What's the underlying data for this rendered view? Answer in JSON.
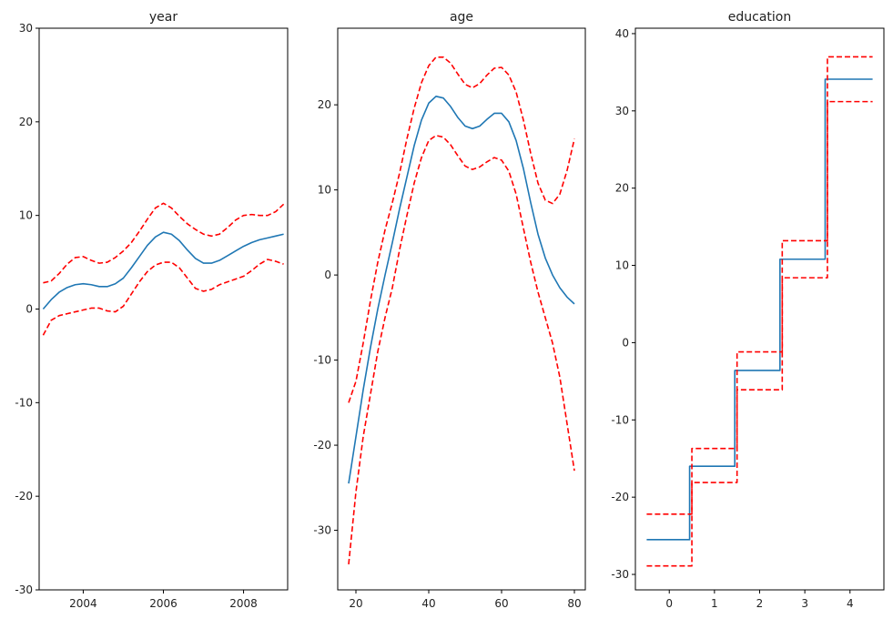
{
  "chart_data": [
    {
      "type": "line",
      "title": "year",
      "xlim": [
        2002.9,
        2009.1
      ],
      "ylim": [
        -30,
        30
      ],
      "xticks": [
        2004,
        2006,
        2008
      ],
      "yticks": [
        -30,
        -20,
        -10,
        0,
        10,
        20,
        30
      ],
      "series": [
        {
          "color": "#1f77b4",
          "style": "solid",
          "points": [
            [
              2003.0,
              0.0
            ],
            [
              2003.2,
              1.0
            ],
            [
              2003.4,
              1.8
            ],
            [
              2003.6,
              2.3
            ],
            [
              2003.8,
              2.6
            ],
            [
              2004.0,
              2.7
            ],
            [
              2004.2,
              2.6
            ],
            [
              2004.4,
              2.4
            ],
            [
              2004.6,
              2.4
            ],
            [
              2004.8,
              2.7
            ],
            [
              2005.0,
              3.3
            ],
            [
              2005.2,
              4.4
            ],
            [
              2005.4,
              5.6
            ],
            [
              2005.6,
              6.8
            ],
            [
              2005.8,
              7.7
            ],
            [
              2006.0,
              8.2
            ],
            [
              2006.2,
              8.0
            ],
            [
              2006.4,
              7.3
            ],
            [
              2006.6,
              6.3
            ],
            [
              2006.8,
              5.4
            ],
            [
              2007.0,
              4.9
            ],
            [
              2007.2,
              4.9
            ],
            [
              2007.4,
              5.2
            ],
            [
              2007.6,
              5.7
            ],
            [
              2007.8,
              6.2
            ],
            [
              2008.0,
              6.7
            ],
            [
              2008.2,
              7.1
            ],
            [
              2008.4,
              7.4
            ],
            [
              2008.6,
              7.6
            ],
            [
              2008.8,
              7.8
            ],
            [
              2009.0,
              8.0
            ]
          ]
        },
        {
          "color": "#ff0000",
          "style": "dashed",
          "points": [
            [
              2003.0,
              2.8
            ],
            [
              2003.2,
              3.0
            ],
            [
              2003.4,
              3.8
            ],
            [
              2003.6,
              4.8
            ],
            [
              2003.8,
              5.5
            ],
            [
              2004.0,
              5.6
            ],
            [
              2004.2,
              5.2
            ],
            [
              2004.4,
              4.9
            ],
            [
              2004.6,
              5.0
            ],
            [
              2004.8,
              5.5
            ],
            [
              2005.0,
              6.2
            ],
            [
              2005.2,
              7.1
            ],
            [
              2005.4,
              8.3
            ],
            [
              2005.6,
              9.6
            ],
            [
              2005.8,
              10.8
            ],
            [
              2006.0,
              11.3
            ],
            [
              2006.2,
              10.8
            ],
            [
              2006.4,
              9.9
            ],
            [
              2006.6,
              9.1
            ],
            [
              2006.8,
              8.5
            ],
            [
              2007.0,
              8.0
            ],
            [
              2007.2,
              7.8
            ],
            [
              2007.4,
              8.0
            ],
            [
              2007.6,
              8.7
            ],
            [
              2007.8,
              9.5
            ],
            [
              2008.0,
              10.0
            ],
            [
              2008.2,
              10.1
            ],
            [
              2008.4,
              10.0
            ],
            [
              2008.6,
              10.0
            ],
            [
              2008.8,
              10.4
            ],
            [
              2009.0,
              11.2
            ]
          ]
        },
        {
          "color": "#ff0000",
          "style": "dashed",
          "points": [
            [
              2003.0,
              -2.8
            ],
            [
              2003.2,
              -1.2
            ],
            [
              2003.4,
              -0.7
            ],
            [
              2003.6,
              -0.5
            ],
            [
              2003.8,
              -0.3
            ],
            [
              2004.0,
              -0.1
            ],
            [
              2004.2,
              0.1
            ],
            [
              2004.4,
              0.1
            ],
            [
              2004.6,
              -0.2
            ],
            [
              2004.8,
              -0.3
            ],
            [
              2005.0,
              0.3
            ],
            [
              2005.2,
              1.6
            ],
            [
              2005.4,
              2.9
            ],
            [
              2005.6,
              4.0
            ],
            [
              2005.8,
              4.7
            ],
            [
              2006.0,
              5.0
            ],
            [
              2006.2,
              5.0
            ],
            [
              2006.4,
              4.4
            ],
            [
              2006.6,
              3.3
            ],
            [
              2006.8,
              2.2
            ],
            [
              2007.0,
              1.9
            ],
            [
              2007.2,
              2.1
            ],
            [
              2007.4,
              2.6
            ],
            [
              2007.6,
              2.9
            ],
            [
              2007.8,
              3.2
            ],
            [
              2008.0,
              3.5
            ],
            [
              2008.2,
              4.1
            ],
            [
              2008.4,
              4.8
            ],
            [
              2008.6,
              5.3
            ],
            [
              2008.8,
              5.1
            ],
            [
              2009.0,
              4.8
            ]
          ]
        }
      ]
    },
    {
      "type": "line",
      "title": "age",
      "xlim": [
        15.0,
        83.0
      ],
      "ylim": [
        -37,
        29
      ],
      "xticks": [
        20,
        40,
        60,
        80
      ],
      "yticks": [
        -30,
        -20,
        -10,
        0,
        10,
        20
      ],
      "series": [
        {
          "color": "#1f77b4",
          "style": "solid",
          "points": [
            [
              18,
              -24.5
            ],
            [
              20,
              -19.0
            ],
            [
              22,
              -13.5
            ],
            [
              24,
              -8.5
            ],
            [
              26,
              -4.0
            ],
            [
              28,
              0.0
            ],
            [
              30,
              3.8
            ],
            [
              32,
              7.8
            ],
            [
              34,
              11.5
            ],
            [
              36,
              15.2
            ],
            [
              38,
              18.2
            ],
            [
              40,
              20.2
            ],
            [
              42,
              21.0
            ],
            [
              44,
              20.8
            ],
            [
              46,
              19.8
            ],
            [
              48,
              18.5
            ],
            [
              50,
              17.5
            ],
            [
              52,
              17.2
            ],
            [
              54,
              17.5
            ],
            [
              56,
              18.3
            ],
            [
              58,
              19.0
            ],
            [
              60,
              19.0
            ],
            [
              62,
              18.0
            ],
            [
              64,
              15.8
            ],
            [
              66,
              12.5
            ],
            [
              68,
              8.5
            ],
            [
              70,
              4.8
            ],
            [
              72,
              2.0
            ],
            [
              74,
              0.0
            ],
            [
              76,
              -1.5
            ],
            [
              78,
              -2.6
            ],
            [
              80,
              -3.4
            ]
          ]
        },
        {
          "color": "#ff0000",
          "style": "dashed",
          "points": [
            [
              18,
              -15.0
            ],
            [
              20,
              -12.5
            ],
            [
              22,
              -8.0
            ],
            [
              24,
              -3.0
            ],
            [
              26,
              1.5
            ],
            [
              28,
              5.3
            ],
            [
              30,
              8.5
            ],
            [
              32,
              12.0
            ],
            [
              34,
              16.0
            ],
            [
              36,
              19.6
            ],
            [
              38,
              22.6
            ],
            [
              40,
              24.6
            ],
            [
              42,
              25.6
            ],
            [
              44,
              25.6
            ],
            [
              46,
              24.9
            ],
            [
              48,
              23.6
            ],
            [
              50,
              22.4
            ],
            [
              52,
              22.0
            ],
            [
              54,
              22.5
            ],
            [
              56,
              23.5
            ],
            [
              58,
              24.3
            ],
            [
              60,
              24.4
            ],
            [
              62,
              23.5
            ],
            [
              64,
              21.5
            ],
            [
              66,
              18.2
            ],
            [
              68,
              14.3
            ],
            [
              70,
              10.8
            ],
            [
              72,
              8.8
            ],
            [
              74,
              8.4
            ],
            [
              76,
              9.5
            ],
            [
              78,
              12.3
            ],
            [
              80,
              16.0
            ]
          ]
        },
        {
          "color": "#ff0000",
          "style": "dashed",
          "points": [
            [
              18,
              -34.0
            ],
            [
              20,
              -25.5
            ],
            [
              22,
              -19.0
            ],
            [
              24,
              -14.0
            ],
            [
              26,
              -9.0
            ],
            [
              28,
              -5.0
            ],
            [
              30,
              -1.5
            ],
            [
              32,
              3.0
            ],
            [
              34,
              7.0
            ],
            [
              36,
              10.8
            ],
            [
              38,
              13.8
            ],
            [
              40,
              15.8
            ],
            [
              42,
              16.4
            ],
            [
              44,
              16.2
            ],
            [
              46,
              15.3
            ],
            [
              48,
              14.0
            ],
            [
              50,
              12.8
            ],
            [
              52,
              12.4
            ],
            [
              54,
              12.7
            ],
            [
              56,
              13.3
            ],
            [
              58,
              13.8
            ],
            [
              60,
              13.5
            ],
            [
              62,
              12.2
            ],
            [
              64,
              9.5
            ],
            [
              66,
              5.5
            ],
            [
              68,
              1.5
            ],
            [
              70,
              -2.0
            ],
            [
              72,
              -5.0
            ],
            [
              74,
              -8.0
            ],
            [
              76,
              -12.0
            ],
            [
              78,
              -17.5
            ],
            [
              80,
              -23.0
            ]
          ]
        }
      ]
    },
    {
      "type": "line",
      "title": "education",
      "xlim": [
        -0.75,
        4.75
      ],
      "ylim": [
        -32,
        40.7
      ],
      "xticks": [
        0,
        1,
        2,
        3,
        4
      ],
      "yticks": [
        -30,
        -20,
        -10,
        0,
        10,
        20,
        30,
        40
      ],
      "series": [
        {
          "color": "#1f77b4",
          "style": "solid",
          "points": [
            [
              -0.5,
              -25.5
            ],
            [
              0.45,
              -25.5
            ],
            [
              0.45,
              -16.0
            ],
            [
              1.45,
              -16.0
            ],
            [
              1.45,
              -3.6
            ],
            [
              2.45,
              -3.6
            ],
            [
              2.45,
              10.8
            ],
            [
              3.45,
              10.8
            ],
            [
              3.45,
              34.1
            ],
            [
              4.5,
              34.1
            ]
          ]
        },
        {
          "color": "#ff0000",
          "style": "dashed",
          "points": [
            [
              -0.5,
              -22.2
            ],
            [
              0.5,
              -22.2
            ],
            [
              0.5,
              -13.7
            ],
            [
              1.5,
              -13.7
            ],
            [
              1.5,
              -1.2
            ],
            [
              2.5,
              -1.2
            ],
            [
              2.5,
              13.2
            ],
            [
              3.5,
              13.2
            ],
            [
              3.5,
              37.0
            ],
            [
              4.5,
              37.0
            ]
          ]
        },
        {
          "color": "#ff0000",
          "style": "dashed",
          "points": [
            [
              -0.5,
              -28.9
            ],
            [
              0.5,
              -28.9
            ],
            [
              0.5,
              -18.1
            ],
            [
              1.5,
              -18.1
            ],
            [
              1.5,
              -6.1
            ],
            [
              2.5,
              -6.1
            ],
            [
              2.5,
              8.4
            ],
            [
              3.5,
              8.4
            ],
            [
              3.5,
              31.2
            ],
            [
              4.5,
              31.2
            ]
          ]
        }
      ]
    }
  ]
}
